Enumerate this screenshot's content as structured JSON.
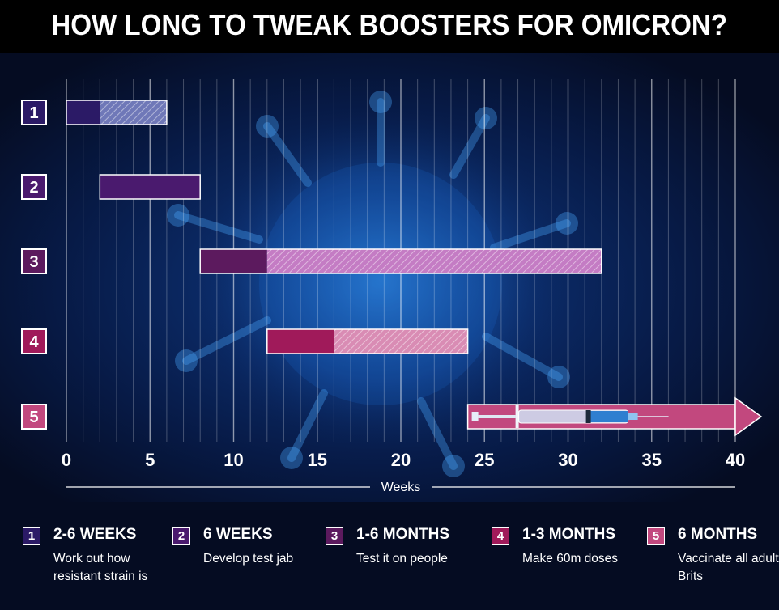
{
  "title": "HOW LONG TO TWEAK BOOSTERS FOR OMICRON?",
  "chart_data": {
    "type": "gantt",
    "xlabel": "Weeks",
    "xlim": [
      0,
      40
    ],
    "xticks": [
      0,
      5,
      10,
      15,
      20,
      25,
      30,
      35,
      40
    ],
    "minor_grid_step": 1,
    "tasks": [
      {
        "id": "1",
        "start": 0,
        "solid_end": 2,
        "end": 6,
        "color": "#2b1a66",
        "hatch": "#6f78b8"
      },
      {
        "id": "2",
        "start": 2,
        "solid_end": 8,
        "end": 8,
        "color": "#4a1a6e",
        "hatch": "#8a5ab0"
      },
      {
        "id": "3",
        "start": 8,
        "solid_end": 12,
        "end": 32,
        "color": "#5c1a5e",
        "hatch": "#c47cc4"
      },
      {
        "id": "4",
        "start": 12,
        "solid_end": 16,
        "end": 24,
        "color": "#a01a5a",
        "hatch": "#d98cb4"
      },
      {
        "id": "5",
        "start": 24,
        "solid_end": 40,
        "end": 40,
        "color": "#c2487e",
        "hatch": "#c2487e",
        "arrow": true
      }
    ]
  },
  "legend": [
    {
      "num": "1",
      "head": "2-6 WEEKS",
      "desc": "Work out how resistant strain is",
      "color": "#2b1a66"
    },
    {
      "num": "2",
      "head": "6 WEEKS",
      "desc": "Develop test jab",
      "color": "#4a1a6e"
    },
    {
      "num": "3",
      "head": "1-6 MONTHS",
      "desc": "Test it on people",
      "color": "#5c1a5e"
    },
    {
      "num": "4",
      "head": "1-3 MONTHS",
      "desc": "Make 60m doses",
      "color": "#a01a5a"
    },
    {
      "num": "5",
      "head": "6 MONTHS",
      "desc": "Vaccinate all adult Brits",
      "color": "#c2487e"
    }
  ]
}
